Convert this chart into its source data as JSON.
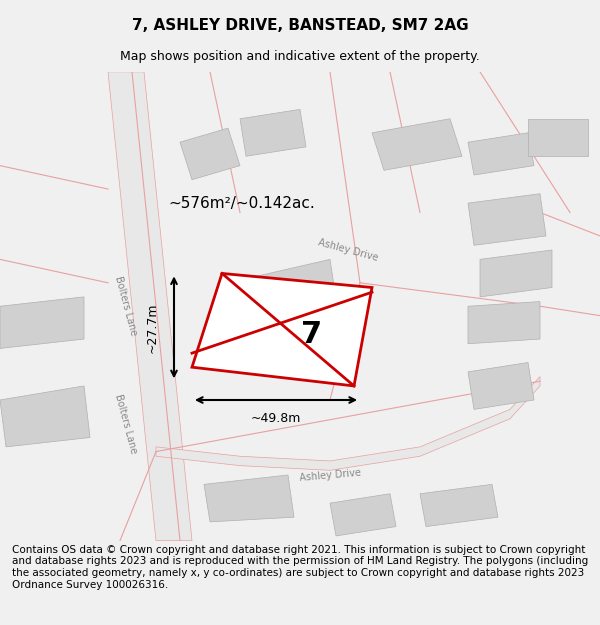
{
  "title": "7, ASHLEY DRIVE, BANSTEAD, SM7 2AG",
  "subtitle": "Map shows position and indicative extent of the property.",
  "footer": "Contains OS data © Crown copyright and database right 2021. This information is subject to Crown copyright and database rights 2023 and is reproduced with the permission of HM Land Registry. The polygons (including the associated geometry, namely x, y co-ordinates) are subject to Crown copyright and database rights 2023 Ordnance Survey 100026316.",
  "bg_color": "#f5f5f5",
  "map_bg": "#ffffff",
  "road_color": "#e8a0a0",
  "building_color": "#d0d0d0",
  "plot_fill": "#ffffff",
  "plot_edge": "#cc0000",
  "plot_label": "7",
  "area_label": "~576m²/~0.142ac.",
  "dim_width": "~49.8m",
  "dim_height": "~27.7m",
  "title_fontsize": 11,
  "subtitle_fontsize": 9,
  "footer_fontsize": 7.5
}
